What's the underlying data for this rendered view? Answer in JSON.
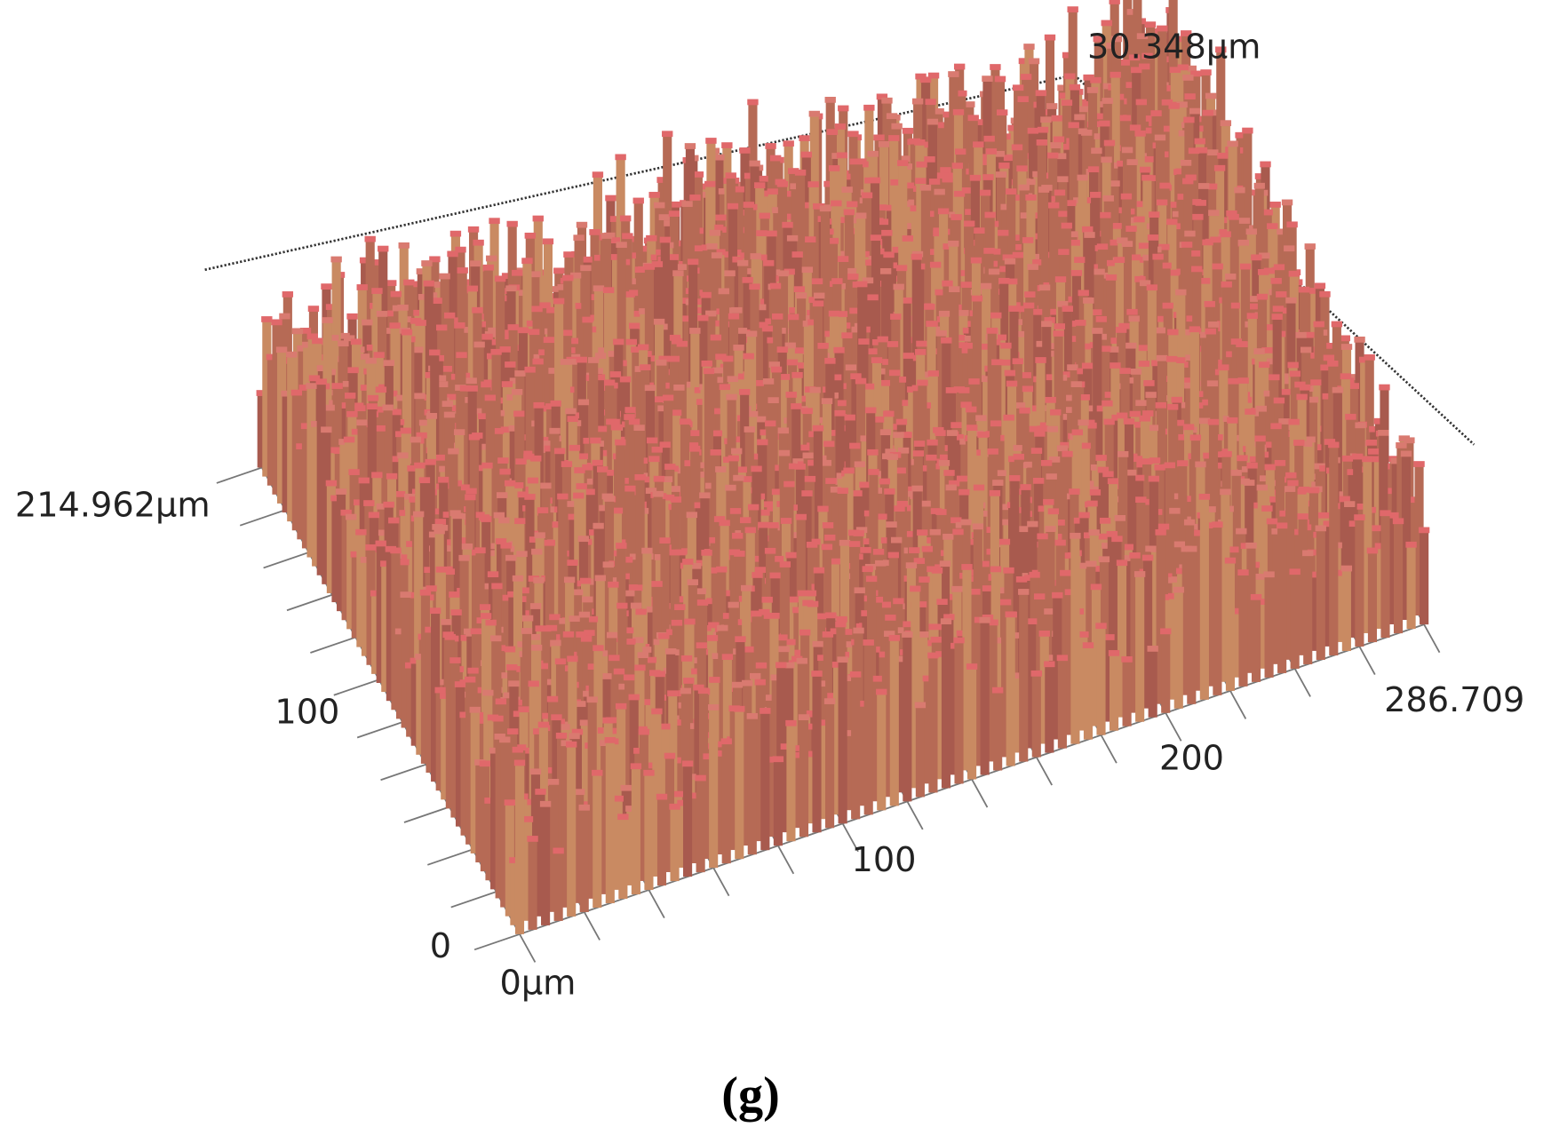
{
  "figure": {
    "z_axis": {
      "max_label": "30.348µm"
    },
    "y_axis": {
      "max_label": "214.962µm",
      "labels": [
        "100",
        "0"
      ]
    },
    "x_axis": {
      "min_label": "0µm",
      "labels": [
        "100",
        "200"
      ],
      "max_label": "286.709"
    },
    "caption": "(g)"
  }
}
